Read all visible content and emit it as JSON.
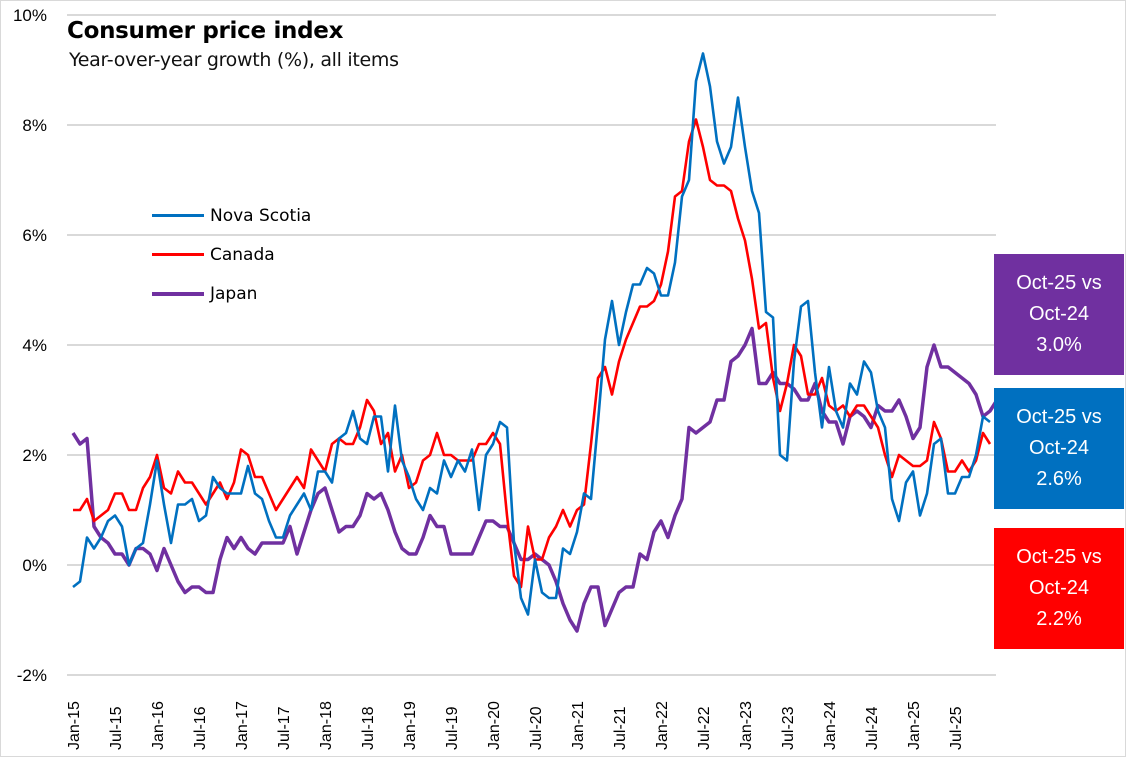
{
  "chart_data": {
    "type": "line",
    "title": "Consumer price index",
    "subtitle": "Year-over-year growth (%), all items",
    "xlabel": "",
    "ylabel": "",
    "ylim": [
      -2,
      10
    ],
    "yticks": [
      -2,
      0,
      2,
      4,
      6,
      8,
      10
    ],
    "ytick_labels": [
      "-2%",
      "0%",
      "2%",
      "4%",
      "6%",
      "8%",
      "10%"
    ],
    "x_start": "Jan-15",
    "x_end": "Oct-25",
    "frequency": "monthly",
    "xtick_labels": [
      "Jan-15",
      "Jul-15",
      "Jan-16",
      "Jul-16",
      "Jan-17",
      "Jul-17",
      "Jan-18",
      "Jul-18",
      "Jan-19",
      "Jul-19",
      "Jan-20",
      "Jul-20",
      "Jan-21",
      "Jul-21",
      "Jan-22",
      "Jul-22",
      "Jan-23",
      "Jul-23",
      "Jan-24",
      "Jul-24",
      "Jan-25",
      "Jul-25"
    ],
    "grid": true,
    "legend_position": "upper-left",
    "series": [
      {
        "name": "Nova Scotia",
        "color": "#0070C0",
        "values": [
          -0.4,
          -0.3,
          0.5,
          0.3,
          0.5,
          0.8,
          0.9,
          0.7,
          0.0,
          0.3,
          0.4,
          1.1,
          1.9,
          1.1,
          0.4,
          1.1,
          1.1,
          1.2,
          0.8,
          0.9,
          1.6,
          1.4,
          1.3,
          1.3,
          1.3,
          1.8,
          1.3,
          1.2,
          0.8,
          0.5,
          0.5,
          0.9,
          1.1,
          1.3,
          1.0,
          1.7,
          1.7,
          1.5,
          2.3,
          2.4,
          2.8,
          2.3,
          2.2,
          2.7,
          2.7,
          1.7,
          2.9,
          1.9,
          1.6,
          1.2,
          1.0,
          1.4,
          1.3,
          1.9,
          1.6,
          1.9,
          1.7,
          2.1,
          1.0,
          2.0,
          2.2,
          2.6,
          2.5,
          0.4,
          -0.6,
          -0.9,
          0.1,
          -0.5,
          -0.6,
          -0.6,
          0.3,
          0.2,
          0.6,
          1.3,
          1.2,
          2.6,
          4.1,
          4.8,
          4.0,
          4.6,
          5.1,
          5.1,
          5.4,
          5.3,
          4.9,
          4.9,
          5.5,
          6.7,
          7.0,
          8.8,
          9.3,
          8.7,
          7.7,
          7.3,
          7.6,
          8.5,
          7.6,
          6.8,
          6.4,
          4.6,
          4.5,
          2.0,
          1.9,
          3.7,
          4.7,
          4.8,
          3.5,
          2.5,
          3.6,
          2.8,
          2.5,
          3.3,
          3.1,
          3.7,
          3.5,
          2.8,
          2.5,
          1.2,
          0.8,
          1.5,
          1.7,
          0.9,
          1.3,
          2.2,
          2.3,
          1.3,
          1.3,
          1.6,
          1.6,
          2.0,
          2.7,
          2.6
        ]
      },
      {
        "name": "Canada",
        "color": "#FF0000",
        "values": [
          1.0,
          1.0,
          1.2,
          0.8,
          0.9,
          1.0,
          1.3,
          1.3,
          1.0,
          1.0,
          1.4,
          1.6,
          2.0,
          1.4,
          1.3,
          1.7,
          1.5,
          1.5,
          1.3,
          1.1,
          1.3,
          1.5,
          1.2,
          1.5,
          2.1,
          2.0,
          1.6,
          1.6,
          1.3,
          1.0,
          1.2,
          1.4,
          1.6,
          1.4,
          2.1,
          1.9,
          1.7,
          2.2,
          2.3,
          2.2,
          2.2,
          2.5,
          3.0,
          2.8,
          2.2,
          2.4,
          1.7,
          2.0,
          1.4,
          1.5,
          1.9,
          2.0,
          2.4,
          2.0,
          2.0,
          1.9,
          1.9,
          1.9,
          2.2,
          2.2,
          2.4,
          2.2,
          0.9,
          -0.2,
          -0.4,
          0.7,
          0.1,
          0.1,
          0.5,
          0.7,
          1.0,
          0.7,
          1.0,
          1.1,
          2.2,
          3.4,
          3.6,
          3.1,
          3.7,
          4.1,
          4.4,
          4.7,
          4.7,
          4.8,
          5.1,
          5.7,
          6.7,
          6.8,
          7.7,
          8.1,
          7.6,
          7.0,
          6.9,
          6.9,
          6.8,
          6.3,
          5.9,
          5.2,
          4.3,
          4.4,
          3.4,
          2.8,
          3.3,
          4.0,
          3.8,
          3.1,
          3.1,
          3.4,
          2.9,
          2.8,
          2.9,
          2.7,
          2.9,
          2.9,
          2.7,
          2.5,
          2.0,
          1.6,
          2.0,
          1.9,
          1.8,
          1.8,
          1.9,
          2.6,
          2.3,
          1.7,
          1.7,
          1.9,
          1.7,
          1.9,
          2.4,
          2.2
        ]
      },
      {
        "name": "Japan",
        "color": "#7030A0",
        "values": [
          2.4,
          2.2,
          2.3,
          0.7,
          0.5,
          0.4,
          0.2,
          0.2,
          0.0,
          0.3,
          0.3,
          0.2,
          -0.1,
          0.3,
          0.0,
          -0.3,
          -0.5,
          -0.4,
          -0.4,
          -0.5,
          -0.5,
          0.1,
          0.5,
          0.3,
          0.5,
          0.3,
          0.2,
          0.4,
          0.4,
          0.4,
          0.4,
          0.7,
          0.2,
          0.6,
          1.0,
          1.3,
          1.4,
          1.0,
          0.6,
          0.7,
          0.7,
          0.9,
          1.3,
          1.2,
          1.3,
          1.0,
          0.6,
          0.3,
          0.2,
          0.2,
          0.5,
          0.9,
          0.7,
          0.7,
          0.2,
          0.2,
          0.2,
          0.2,
          0.5,
          0.8,
          0.8,
          0.7,
          0.7,
          0.4,
          0.1,
          0.1,
          0.2,
          0.1,
          0.0,
          -0.3,
          -0.7,
          -1.0,
          -1.2,
          -0.7,
          -0.4,
          -0.4,
          -1.1,
          -0.8,
          -0.5,
          -0.4,
          -0.4,
          0.2,
          0.1,
          0.6,
          0.8,
          0.5,
          0.9,
          1.2,
          2.5,
          2.4,
          2.5,
          2.6,
          3.0,
          3.0,
          3.7,
          3.8,
          4.0,
          4.3,
          3.3,
          3.3,
          3.5,
          3.3,
          3.3,
          3.2,
          3.0,
          3.0,
          3.3,
          2.8,
          2.6,
          2.6,
          2.2,
          2.7,
          2.8,
          2.7,
          2.5,
          2.9,
          2.8,
          2.8,
          3.0,
          2.7,
          2.3,
          2.5,
          3.6,
          4.0,
          3.6,
          3.6,
          3.5,
          3.4,
          3.3,
          3.1,
          2.7,
          2.8,
          3.0
        ]
      }
    ]
  },
  "callouts": [
    {
      "line1": "Oct-25 vs",
      "line2": "Oct-24",
      "value": "3.0%",
      "color": "#7030A0",
      "series": "Japan"
    },
    {
      "line1": "Oct-25 vs",
      "line2": "Oct-24",
      "value": "2.6%",
      "color": "#0070C0",
      "series": "Nova Scotia"
    },
    {
      "line1": "Oct-25 vs",
      "line2": "Oct-24",
      "value": "2.2%",
      "color": "#FF0000",
      "series": "Canada"
    }
  ]
}
